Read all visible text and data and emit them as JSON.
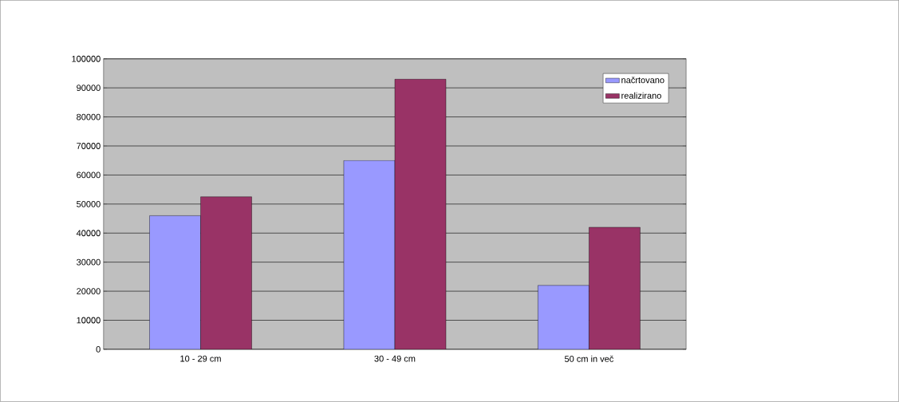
{
  "chart_data": {
    "type": "bar",
    "categories": [
      "10 - 29 cm",
      "30 - 49 cm",
      "50 cm in več"
    ],
    "series": [
      {
        "name": "načrtovano",
        "color": "#9999ff",
        "values": [
          46000,
          65000,
          22000
        ]
      },
      {
        "name": "realizirano",
        "color": "#993366",
        "values": [
          52500,
          93000,
          42000
        ]
      }
    ],
    "ylim": [
      0,
      100000
    ],
    "yticks": [
      0,
      10000,
      20000,
      30000,
      40000,
      50000,
      60000,
      70000,
      80000,
      90000,
      100000
    ],
    "grid": "y",
    "legend": "top right"
  }
}
